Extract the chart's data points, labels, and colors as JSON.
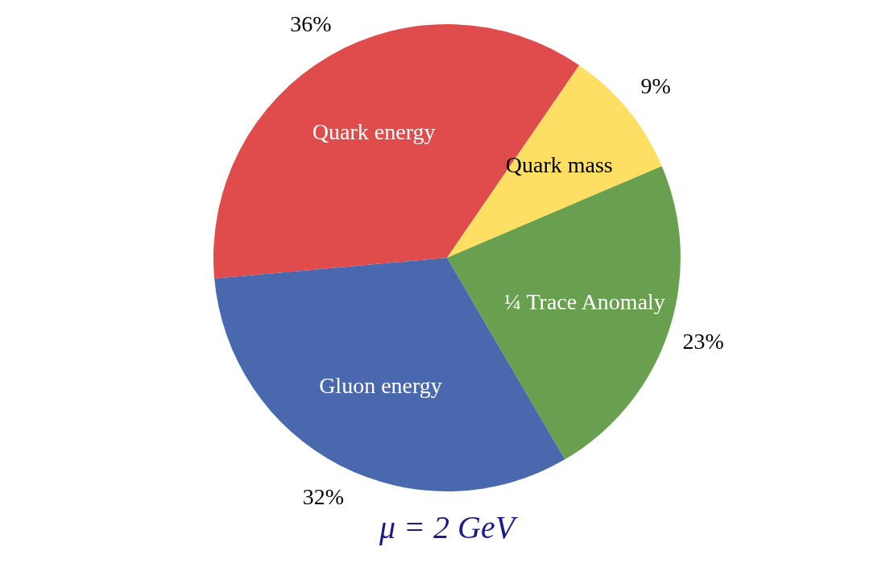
{
  "chart_data": {
    "type": "pie",
    "title": "μ = 2 GeV",
    "categories": [
      "Quark energy",
      "Quark mass",
      "¼ Trace Anomaly",
      "Gluon energy"
    ],
    "values": [
      36,
      9,
      23,
      32
    ],
    "value_labels": [
      "36%",
      "9%",
      "23%",
      "32%"
    ],
    "colors": [
      "#e04b4b",
      "#fde063",
      "#68a04f",
      "#4a68ae"
    ],
    "legend": false
  }
}
